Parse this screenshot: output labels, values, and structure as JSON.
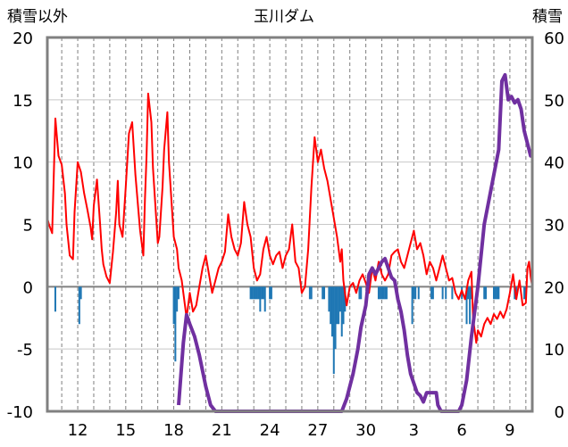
{
  "chart_data": {
    "type": "line",
    "title": "玉川ダム",
    "left_axis_label": "積雪以外",
    "right_axis_label": "積雪",
    "left_ylim": [
      -10,
      20
    ],
    "right_ylim": [
      0,
      60
    ],
    "left_ticks": [
      "20",
      "15",
      "10",
      "5",
      "0",
      "-5",
      "-10"
    ],
    "right_ticks": [
      "60",
      "50",
      "40",
      "30",
      "20",
      "10",
      "0"
    ],
    "x_tick_labels": [
      "12",
      "15",
      "18",
      "21",
      "24",
      "27",
      "30",
      "3",
      "6",
      "9"
    ],
    "x_tick_days": [
      12,
      15,
      18,
      21,
      24,
      27,
      30,
      33,
      36,
      39
    ],
    "x_range_days": [
      10.1,
      40.4
    ],
    "grid": true,
    "colors": {
      "temperature": "#ff0000",
      "precip": "#1f77b4",
      "snow": "#7030a0",
      "frame": "#808080"
    },
    "series": [
      {
        "key": "red",
        "axis": "left",
        "points": [
          [
            10.1,
            5.5
          ],
          [
            10.2,
            5
          ],
          [
            10.4,
            4.3
          ],
          [
            10.6,
            13.5
          ],
          [
            10.8,
            10.5
          ],
          [
            11,
            9.8
          ],
          [
            11.2,
            7.5
          ],
          [
            11.3,
            5
          ],
          [
            11.5,
            2.5
          ],
          [
            11.7,
            2.2
          ],
          [
            11.8,
            6
          ],
          [
            12,
            10
          ],
          [
            12.2,
            9.2
          ],
          [
            12.4,
            7.5
          ],
          [
            12.6,
            6.2
          ],
          [
            12.8,
            4.8
          ],
          [
            12.9,
            3.8
          ],
          [
            13,
            6.5
          ],
          [
            13.2,
            8.6
          ],
          [
            13.4,
            5
          ],
          [
            13.5,
            3
          ],
          [
            13.6,
            1.8
          ],
          [
            13.8,
            0.8
          ],
          [
            14,
            0.3
          ],
          [
            14.2,
            2.8
          ],
          [
            14.4,
            6
          ],
          [
            14.5,
            8.5
          ],
          [
            14.6,
            5
          ],
          [
            14.8,
            4
          ],
          [
            15,
            8
          ],
          [
            15.2,
            12.3
          ],
          [
            15.4,
            13.2
          ],
          [
            15.6,
            9
          ],
          [
            15.8,
            6
          ],
          [
            15.9,
            4.5
          ],
          [
            16.1,
            2.5
          ],
          [
            16.2,
            7
          ],
          [
            16.3,
            10.5
          ],
          [
            16.4,
            15.5
          ],
          [
            16.6,
            13.2
          ],
          [
            16.7,
            9.5
          ],
          [
            16.9,
            5.5
          ],
          [
            17,
            3.5
          ],
          [
            17.1,
            4
          ],
          [
            17.3,
            8
          ],
          [
            17.4,
            11
          ],
          [
            17.6,
            14
          ],
          [
            17.7,
            10
          ],
          [
            17.9,
            6
          ],
          [
            18,
            4
          ],
          [
            18.2,
            3
          ],
          [
            18.3,
            1.5
          ],
          [
            18.5,
            0.5
          ],
          [
            18.7,
            -1.5
          ],
          [
            18.8,
            -2.5
          ],
          [
            19,
            -0.5
          ],
          [
            19.2,
            -2
          ],
          [
            19.4,
            -1.5
          ],
          [
            19.6,
            0
          ],
          [
            19.8,
            1.5
          ],
          [
            20,
            2.5
          ],
          [
            20.2,
            1
          ],
          [
            20.4,
            -0.5
          ],
          [
            20.6,
            0.5
          ],
          [
            20.8,
            1.5
          ],
          [
            21,
            2
          ],
          [
            21.2,
            2.8
          ],
          [
            21.4,
            5.8
          ],
          [
            21.6,
            4
          ],
          [
            21.8,
            3
          ],
          [
            22,
            2.5
          ],
          [
            22.2,
            3.5
          ],
          [
            22.4,
            6.8
          ],
          [
            22.6,
            5
          ],
          [
            22.8,
            4
          ],
          [
            23,
            1.5
          ],
          [
            23.2,
            0.5
          ],
          [
            23.4,
            1
          ],
          [
            23.6,
            3
          ],
          [
            23.8,
            4
          ],
          [
            24,
            2.5
          ],
          [
            24.2,
            1.8
          ],
          [
            24.4,
            2.5
          ],
          [
            24.6,
            2.8
          ],
          [
            24.8,
            1.5
          ],
          [
            25,
            2.5
          ],
          [
            25.2,
            3
          ],
          [
            25.4,
            5
          ],
          [
            25.6,
            2
          ],
          [
            25.8,
            1.5
          ],
          [
            26,
            -0.5
          ],
          [
            26.2,
            0
          ],
          [
            26.4,
            3
          ],
          [
            26.6,
            8
          ],
          [
            26.8,
            12
          ],
          [
            27,
            10
          ],
          [
            27.2,
            11
          ],
          [
            27.4,
            9.5
          ],
          [
            27.6,
            8.5
          ],
          [
            27.8,
            7
          ],
          [
            28,
            5.5
          ],
          [
            28.2,
            4
          ],
          [
            28.4,
            2
          ],
          [
            28.5,
            3
          ],
          [
            28.6,
            0.5
          ],
          [
            28.8,
            -1.5
          ],
          [
            29,
            0
          ],
          [
            29.2,
            0.3
          ],
          [
            29.4,
            -0.5
          ],
          [
            29.6,
            0.5
          ],
          [
            29.8,
            1
          ],
          [
            30,
            0.3
          ],
          [
            30.2,
            -0.5
          ],
          [
            30.4,
            1.5
          ],
          [
            30.6,
            0.5
          ],
          [
            30.8,
            2
          ],
          [
            31,
            1
          ],
          [
            31.2,
            0.5
          ],
          [
            31.4,
            1
          ],
          [
            31.6,
            2.5
          ],
          [
            31.8,
            2.8
          ],
          [
            32,
            3
          ],
          [
            32.2,
            2
          ],
          [
            32.4,
            1.5
          ],
          [
            32.6,
            2.5
          ],
          [
            32.8,
            3.5
          ],
          [
            33,
            4.5
          ],
          [
            33.2,
            3
          ],
          [
            33.4,
            3.5
          ],
          [
            33.6,
            2.5
          ],
          [
            33.8,
            1
          ],
          [
            34,
            2
          ],
          [
            34.2,
            1.5
          ],
          [
            34.4,
            0.5
          ],
          [
            34.6,
            1.5
          ],
          [
            34.8,
            2.5
          ],
          [
            35,
            1.5
          ],
          [
            35.2,
            0.5
          ],
          [
            35.4,
            0.7
          ],
          [
            35.6,
            -0.5
          ],
          [
            35.8,
            -1
          ],
          [
            36,
            -0.3
          ],
          [
            36.2,
            -1
          ],
          [
            36.4,
            0.5
          ],
          [
            36.6,
            1.2
          ],
          [
            36.7,
            -2.5
          ],
          [
            36.9,
            -4.5
          ],
          [
            37,
            -3.5
          ],
          [
            37.2,
            -4
          ],
          [
            37.4,
            -3
          ],
          [
            37.6,
            -2.5
          ],
          [
            37.8,
            -3
          ],
          [
            38,
            -2.2
          ],
          [
            38.2,
            -2.6
          ],
          [
            38.4,
            -2
          ],
          [
            38.6,
            -2.5
          ],
          [
            38.8,
            -1.8
          ],
          [
            39,
            -0.5
          ],
          [
            39.2,
            1
          ],
          [
            39.4,
            -1
          ],
          [
            39.6,
            0.5
          ],
          [
            39.8,
            -1.5
          ],
          [
            40,
            -1.3
          ],
          [
            40.1,
            1.5
          ],
          [
            40.2,
            2
          ],
          [
            40.3,
            0.8
          ],
          [
            40.4,
            0
          ]
        ]
      },
      {
        "key": "purple",
        "axis": "right",
        "points": [
          [
            18.3,
            1
          ],
          [
            18.6,
            11
          ],
          [
            18.8,
            15.5
          ],
          [
            19,
            14
          ],
          [
            19.3,
            12
          ],
          [
            19.6,
            9
          ],
          [
            20,
            4
          ],
          [
            20.3,
            1
          ],
          [
            20.6,
            0
          ],
          [
            21,
            0
          ],
          [
            25,
            0
          ],
          [
            28.5,
            0
          ],
          [
            28.8,
            2
          ],
          [
            29.2,
            6
          ],
          [
            29.5,
            10
          ],
          [
            29.7,
            13.5
          ],
          [
            30,
            17
          ],
          [
            30.2,
            22
          ],
          [
            30.4,
            23
          ],
          [
            30.6,
            22
          ],
          [
            30.8,
            23
          ],
          [
            31,
            24
          ],
          [
            31.2,
            24.5
          ],
          [
            31.4,
            23
          ],
          [
            31.6,
            21.5
          ],
          [
            31.8,
            21
          ],
          [
            32,
            18
          ],
          [
            32.2,
            16
          ],
          [
            32.4,
            13
          ],
          [
            32.6,
            9
          ],
          [
            32.8,
            6
          ],
          [
            33,
            4.5
          ],
          [
            33.2,
            3
          ],
          [
            33.4,
            2.5
          ],
          [
            33.6,
            1.5
          ],
          [
            33.8,
            3
          ],
          [
            34,
            3
          ],
          [
            34.4,
            3
          ],
          [
            34.5,
            1
          ],
          [
            34.7,
            0
          ],
          [
            35.8,
            0
          ],
          [
            36,
            1
          ],
          [
            36.3,
            5
          ],
          [
            36.6,
            12
          ],
          [
            37,
            20
          ],
          [
            37.4,
            30
          ],
          [
            37.7,
            34
          ],
          [
            38,
            38
          ],
          [
            38.3,
            42
          ],
          [
            38.5,
            53
          ],
          [
            38.7,
            54
          ],
          [
            38.9,
            50
          ],
          [
            39.1,
            50.5
          ],
          [
            39.3,
            49.5
          ],
          [
            39.5,
            50
          ],
          [
            39.7,
            48.5
          ],
          [
            39.9,
            45
          ],
          [
            40.1,
            43
          ],
          [
            40.3,
            41
          ],
          [
            40.4,
            41
          ]
        ]
      },
      {
        "key": "blue",
        "axis": "left",
        "bars": [
          [
            10.6,
            -2
          ],
          [
            12.1,
            -3
          ],
          [
            12.2,
            -1
          ],
          [
            18,
            -3
          ],
          [
            18.1,
            -6
          ],
          [
            18.2,
            -2
          ],
          [
            18.3,
            -1
          ],
          [
            22.8,
            -1
          ],
          [
            22.9,
            -1
          ],
          [
            23,
            -1
          ],
          [
            23.1,
            -1
          ],
          [
            23.2,
            -1
          ],
          [
            23.3,
            -1
          ],
          [
            23.4,
            -2
          ],
          [
            23.5,
            -1
          ],
          [
            23.6,
            -1
          ],
          [
            23.7,
            -2
          ],
          [
            24,
            -1
          ],
          [
            24.1,
            -1
          ],
          [
            26.5,
            -1
          ],
          [
            26.6,
            -1
          ],
          [
            27.3,
            -1
          ],
          [
            27.4,
            -1
          ],
          [
            27.7,
            -2
          ],
          [
            27.8,
            -3
          ],
          [
            27.9,
            -4
          ],
          [
            28,
            -7
          ],
          [
            28.1,
            -5
          ],
          [
            28.2,
            -3
          ],
          [
            28.3,
            -3
          ],
          [
            28.4,
            -2
          ],
          [
            28.5,
            -4
          ],
          [
            28.6,
            -3
          ],
          [
            28.7,
            -2
          ],
          [
            29.6,
            -1
          ],
          [
            29.7,
            -1
          ],
          [
            30.8,
            -1
          ],
          [
            30.9,
            -1
          ],
          [
            31,
            -1
          ],
          [
            31.1,
            -1
          ],
          [
            31.2,
            -1
          ],
          [
            31.3,
            -1
          ],
          [
            32.9,
            -3
          ],
          [
            33,
            -1
          ],
          [
            33.1,
            -1
          ],
          [
            33.3,
            -1
          ],
          [
            34.1,
            -1
          ],
          [
            34.2,
            -1
          ],
          [
            34.8,
            -1
          ],
          [
            35,
            -1
          ],
          [
            35.4,
            -1
          ],
          [
            36,
            -1
          ],
          [
            36.3,
            -3
          ],
          [
            36.4,
            -1
          ],
          [
            36.5,
            -3
          ],
          [
            36.6,
            -1
          ],
          [
            37.4,
            -1
          ],
          [
            37.5,
            -1
          ],
          [
            38,
            -1
          ],
          [
            38.1,
            -1
          ],
          [
            38.2,
            -1
          ],
          [
            38.3,
            -1
          ],
          [
            39.3,
            -1
          ],
          [
            39.4,
            -1
          ],
          [
            39.9,
            -1
          ],
          [
            40,
            -1
          ]
        ]
      }
    ]
  }
}
